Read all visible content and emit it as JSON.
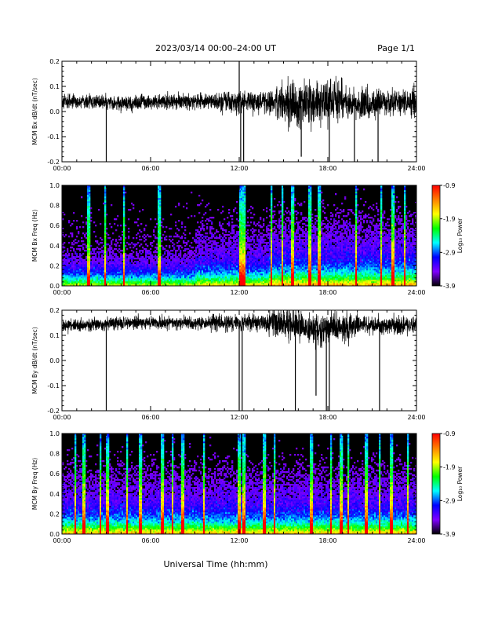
{
  "header": {
    "title": "2023/03/14  00:00–24:00 UT",
    "page": "Page 1/1"
  },
  "footer": {
    "xlabel": "Universal Time (hh:mm)"
  },
  "colorbar": {
    "label": "Log₁₀ Power",
    "ticks": [
      "-0.9",
      "-1.9",
      "-2.9",
      "-3.9"
    ],
    "colors": [
      "#000000",
      "#7f00ff",
      "#0000ff",
      "#00ffff",
      "#00ff00",
      "#ffff00",
      "#ff8000",
      "#ff0000"
    ]
  },
  "chart_data": [
    {
      "type": "line",
      "ylabel": "MCM Bx dB/dt (nT/sec)",
      "xlim": [
        "00:00",
        "24:00"
      ],
      "ylim": [
        -0.2,
        0.2
      ],
      "x_ticks": [
        "00:00",
        "06:00",
        "12:00",
        "18:00",
        "24:00"
      ],
      "y_ticks": [
        "0.2",
        "0.1",
        "0.0",
        "-0.1",
        "-0.2"
      ],
      "series": [
        {
          "x": [
            "00:00",
            "02:00",
            "03:00",
            "04:00",
            "06:00",
            "08:00",
            "10:00",
            "12:00",
            "14:00",
            "16:00",
            "17:00",
            "18:00",
            "20:00",
            "22:00",
            "24:00"
          ],
          "y": [
            0.04,
            0.04,
            0.04,
            0.03,
            0.04,
            0.04,
            0.04,
            0.04,
            0.04,
            0.02,
            0.03,
            0.04,
            0.03,
            0.04,
            0.04
          ]
        }
      ]
    },
    {
      "type": "heatmap",
      "ylabel": "MCM Bx Freq (Hz)",
      "xlim": [
        "00:00",
        "24:00"
      ],
      "ylim": [
        0.0,
        1.0
      ],
      "x_ticks": [
        "00:00",
        "06:00",
        "12:00",
        "18:00",
        "24:00"
      ],
      "y_ticks": [
        "1.0",
        "0.8",
        "0.6",
        "0.4",
        "0.2",
        "0.0"
      ],
      "zlim": [
        -3.9,
        -0.9
      ]
    },
    {
      "type": "line",
      "ylabel": "MCM By dB/dt (nT/sec)",
      "xlim": [
        "00:00",
        "24:00"
      ],
      "ylim": [
        -0.2,
        0.2
      ],
      "x_ticks": [
        "00:00",
        "06:00",
        "12:00",
        "18:00",
        "24:00"
      ],
      "y_ticks": [
        "0.2",
        "0.1",
        "0.0",
        "-0.1",
        "-0.2"
      ],
      "series": [
        {
          "x": [
            "00:00",
            "02:00",
            "04:00",
            "06:00",
            "08:00",
            "10:00",
            "12:00",
            "14:00",
            "16:00",
            "17:00",
            "18:00",
            "20:00",
            "22:00",
            "24:00"
          ],
          "y": [
            0.14,
            0.14,
            0.15,
            0.15,
            0.15,
            0.15,
            0.15,
            0.15,
            0.14,
            0.12,
            0.13,
            0.14,
            0.14,
            0.14
          ]
        }
      ]
    },
    {
      "type": "heatmap",
      "ylabel": "MCM By Freq (Hz)",
      "xlim": [
        "00:00",
        "24:00"
      ],
      "ylim": [
        0.0,
        1.0
      ],
      "x_ticks": [
        "00:00",
        "06:00",
        "12:00",
        "18:00",
        "24:00"
      ],
      "y_ticks": [
        "1.0",
        "0.8",
        "0.6",
        "0.4",
        "0.2",
        "0.0"
      ],
      "zlim": [
        -3.9,
        -0.9
      ]
    }
  ]
}
